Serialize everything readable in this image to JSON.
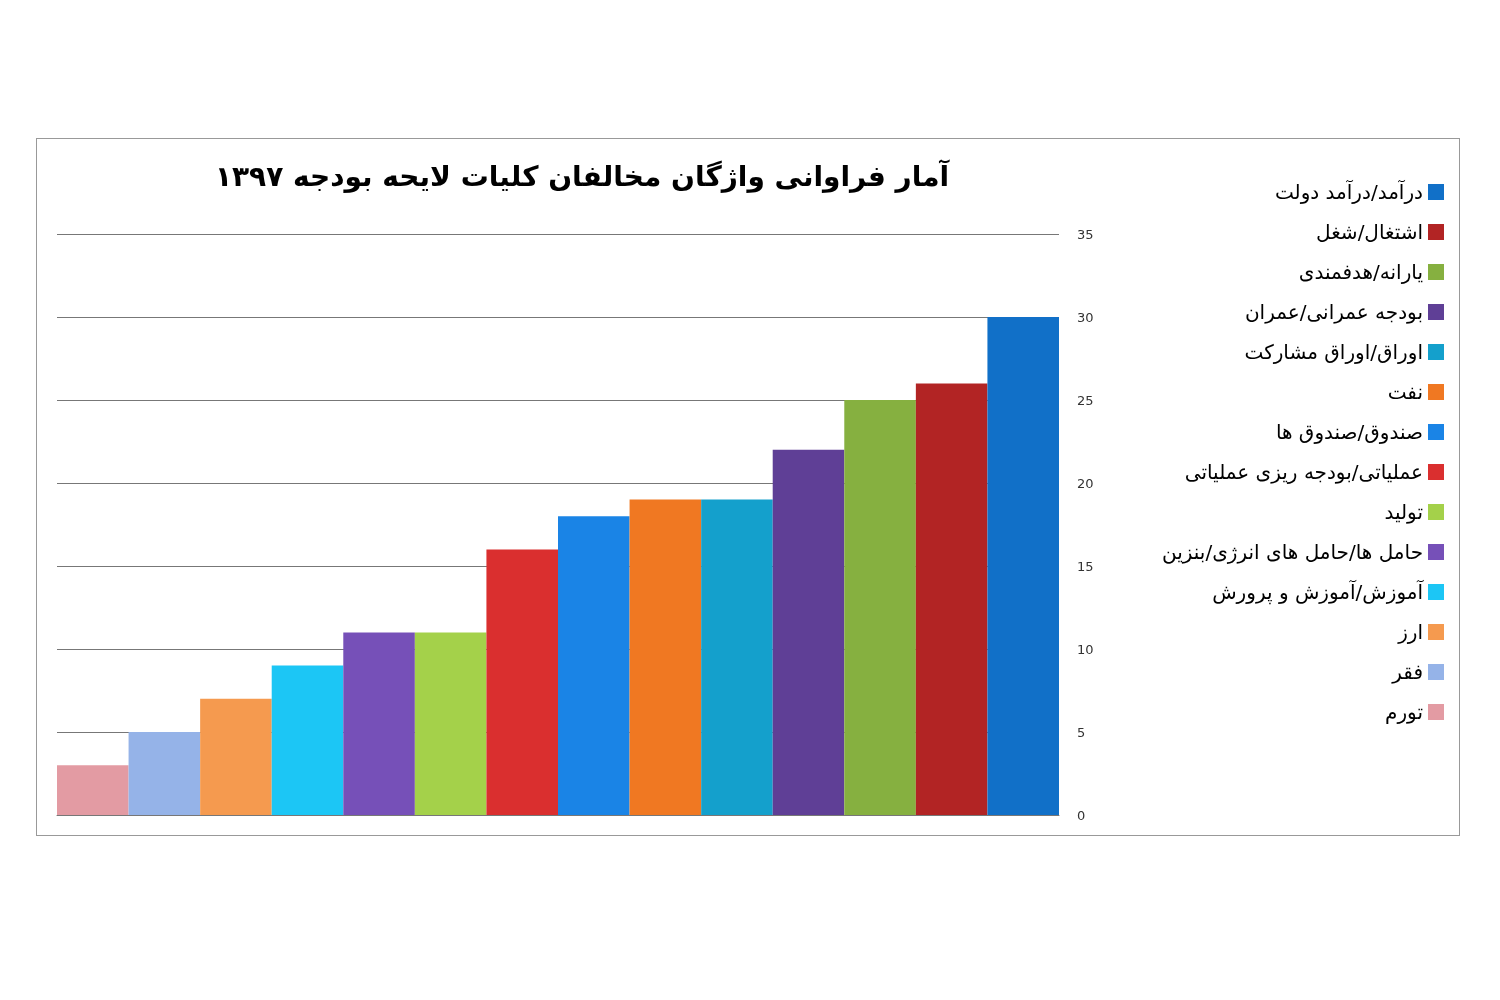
{
  "chart_data": {
    "type": "bar",
    "title": "آمار فراوانی واژگان مخالفان کلیات لایحه بودجه ۱۳۹۷",
    "categories": [
      null,
      null,
      null,
      null,
      null,
      null,
      null,
      null,
      null,
      null,
      null,
      null,
      null,
      null
    ],
    "series": [
      {
        "name": "تورم",
        "color": "#e39ba3",
        "values": [
          3,
          null,
          null,
          null,
          null,
          null,
          null,
          null,
          null,
          null,
          null,
          null,
          null,
          null
        ]
      },
      {
        "name": "فقر",
        "color": "#95b3e8",
        "values": [
          null,
          5,
          null,
          null,
          null,
          null,
          null,
          null,
          null,
          null,
          null,
          null,
          null,
          null
        ]
      },
      {
        "name": "ارز",
        "color": "#f59a4f",
        "values": [
          null,
          null,
          7,
          null,
          null,
          null,
          null,
          null,
          null,
          null,
          null,
          null,
          null,
          null
        ]
      },
      {
        "name": "آموزش/آموزش و پرورش",
        "color": "#1cc6f5",
        "values": [
          null,
          null,
          null,
          9,
          null,
          null,
          null,
          null,
          null,
          null,
          null,
          null,
          null,
          null
        ]
      },
      {
        "name": "حامل ها/حامل های انرژی/بنزین",
        "color": "#7650b8",
        "values": [
          null,
          null,
          null,
          null,
          11,
          null,
          null,
          null,
          null,
          null,
          null,
          null,
          null,
          null
        ]
      },
      {
        "name": "تولید",
        "color": "#a4d14a",
        "values": [
          null,
          null,
          null,
          null,
          null,
          11,
          null,
          null,
          null,
          null,
          null,
          null,
          null,
          null
        ]
      },
      {
        "name": "عملیاتی/بودجه ریزی عملیاتی",
        "color": "#da2f2f",
        "values": [
          null,
          null,
          null,
          null,
          null,
          null,
          16,
          null,
          null,
          null,
          null,
          null,
          null,
          null
        ]
      },
      {
        "name": "صندوق/صندوق ها",
        "color": "#1a84e6",
        "values": [
          null,
          null,
          null,
          null,
          null,
          null,
          null,
          18,
          null,
          null,
          null,
          null,
          null,
          null
        ]
      },
      {
        "name": "نفت",
        "color": "#f07822",
        "values": [
          null,
          null,
          null,
          null,
          null,
          null,
          null,
          null,
          19,
          null,
          null,
          null,
          null,
          null
        ]
      },
      {
        "name": "اوراق/اوراق مشارکت",
        "color": "#14a0cc",
        "values": [
          null,
          null,
          null,
          null,
          null,
          null,
          null,
          null,
          null,
          19,
          null,
          null,
          null,
          null
        ]
      },
      {
        "name": "بودجه عمرانی/عمران",
        "color": "#5f3f96",
        "values": [
          null,
          null,
          null,
          null,
          null,
          null,
          null,
          null,
          null,
          null,
          22,
          null,
          null,
          null
        ]
      },
      {
        "name": "یارانه/هدفمندی",
        "color": "#86b040",
        "values": [
          null,
          null,
          null,
          null,
          null,
          null,
          null,
          null,
          null,
          null,
          null,
          25,
          null,
          null
        ]
      },
      {
        "name": "اشتغال/شغل",
        "color": "#b22424",
        "values": [
          null,
          null,
          null,
          null,
          null,
          null,
          null,
          null,
          null,
          null,
          null,
          null,
          26,
          null
        ]
      },
      {
        "name": "درآمد/درآمد دولت",
        "color": "#1170c8",
        "values": [
          null,
          null,
          null,
          null,
          null,
          null,
          null,
          null,
          null,
          null,
          null,
          null,
          null,
          30
        ]
      }
    ],
    "ylim": [
      0,
      35
    ],
    "yticks": [
      0,
      5,
      10,
      15,
      20,
      25,
      30,
      35
    ],
    "grid": "y",
    "legend": "right"
  }
}
